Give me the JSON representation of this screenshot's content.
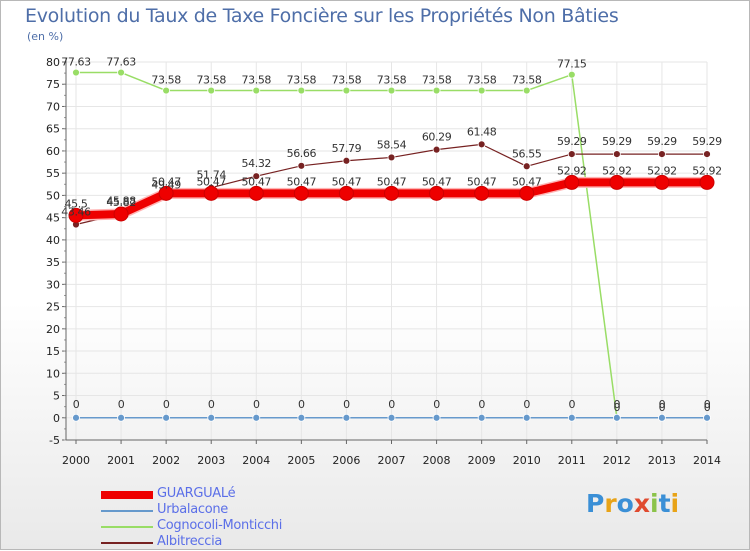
{
  "chart_data": {
    "type": "line",
    "title": "Evolution du Taux de Taxe Foncière sur les Propriétés Non Bâties",
    "ylabel": "(en %)",
    "xlabel": "",
    "x": [
      "2000",
      "2001",
      "2002",
      "2003",
      "2004",
      "2005",
      "2006",
      "2007",
      "2008",
      "2009",
      "2010",
      "2011",
      "2012",
      "2013",
      "2014"
    ],
    "ylim": [
      -5,
      80
    ],
    "yticks": [
      -5,
      0,
      5,
      10,
      15,
      20,
      25,
      30,
      35,
      40,
      45,
      50,
      55,
      60,
      65,
      70,
      75,
      80
    ],
    "grid": true,
    "series": [
      {
        "name": "GUARGUALé",
        "color": "#ee0000",
        "values": [
          45.5,
          45.82,
          50.47,
          50.47,
          50.47,
          50.47,
          50.47,
          50.47,
          50.47,
          50.47,
          50.47,
          52.92,
          52.92,
          52.92,
          52.92
        ],
        "labels": [
          "45.5",
          "45.82",
          "50.47",
          "50.47",
          "50.47",
          "50.47",
          "50.47",
          "50.47",
          "50.47",
          "50.47",
          "50.47",
          "52.92",
          "52.92",
          "52.92",
          "52.92"
        ]
      },
      {
        "name": "Urbalacone",
        "color": "#6699cc",
        "values": [
          0,
          0,
          0,
          0,
          0,
          0,
          0,
          0,
          0,
          0,
          0,
          0,
          0,
          0,
          0
        ],
        "labels": [
          "0",
          "0",
          "0",
          "0",
          "0",
          "0",
          "0",
          "0",
          "0",
          "0",
          "0",
          "0",
          "0",
          "0",
          "0"
        ]
      },
      {
        "name": "Cognocoli-Monticchi",
        "color": "#99dd66",
        "values": [
          77.63,
          77.63,
          73.58,
          73.58,
          73.58,
          73.58,
          73.58,
          73.58,
          73.58,
          73.58,
          73.58,
          77.15,
          0,
          0,
          0
        ],
        "labels": [
          "77.63",
          "77.63",
          "73.58",
          "73.58",
          "73.58",
          "73.58",
          "73.58",
          "73.58",
          "73.58",
          "73.58",
          "73.58",
          "77.15",
          "0",
          "0",
          "0"
        ]
      },
      {
        "name": "Albitreccia",
        "color": "#772222",
        "values": [
          43.46,
          45.88,
          49.49,
          51.74,
          54.32,
          56.66,
          57.79,
          58.54,
          60.29,
          61.48,
          56.55,
          59.29,
          59.29,
          59.29,
          59.29
        ],
        "labels": [
          "43.46",
          "45.88",
          "49.49",
          "51.74",
          "54.32",
          "56.66",
          "57.79",
          "58.54",
          "60.29",
          "61.48",
          "56.55",
          "59.29",
          "59.29",
          "59.29",
          "59.29"
        ]
      }
    ],
    "legend_position": "bottom-left"
  },
  "branding": {
    "logo_text": "Proxiti",
    "logo_colors": [
      "#3a8fd6",
      "#e8a317",
      "#3a8fd6",
      "#e04a2f",
      "#8bc34a",
      "#3a8fd6",
      "#e8a317"
    ]
  }
}
